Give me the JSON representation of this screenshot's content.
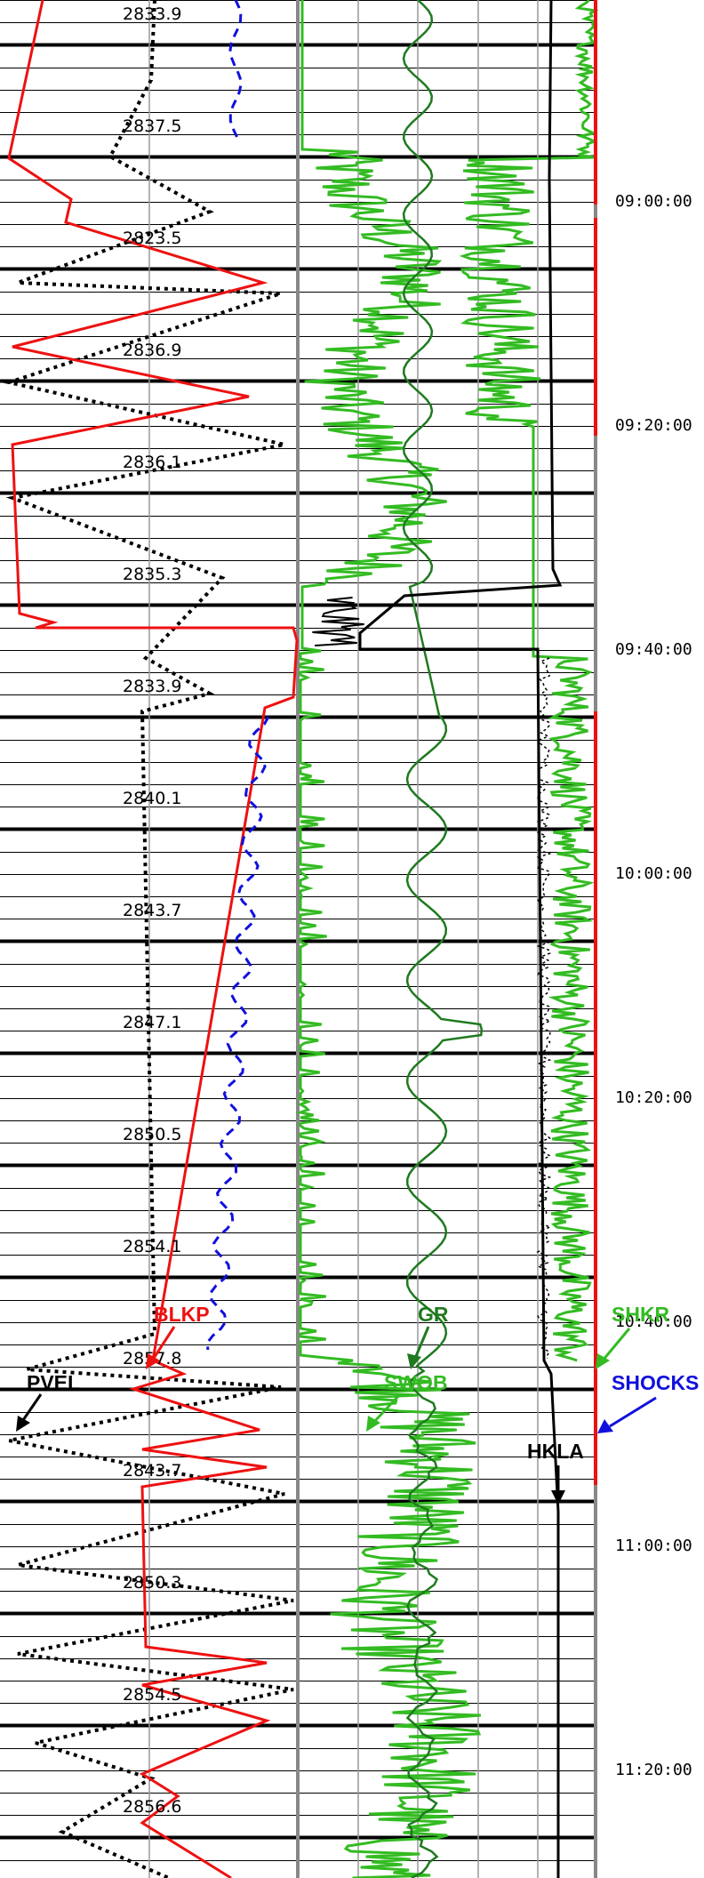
{
  "log": {
    "depth_labels": [
      "2833.9",
      "2837.5",
      "2823.5",
      "2836.9",
      "2836.1",
      "2835.3",
      "2833.9",
      "2840.1",
      "2843.7",
      "2847.1",
      "2850.5",
      "2854.1",
      "2857.8",
      "2843.7",
      "2850.3",
      "2854.5",
      "2856.6"
    ],
    "time_labels": [
      "09:00:00",
      "09:20:00",
      "09:40:00",
      "10:00:00",
      "10:20:00",
      "10:40:00",
      "11:00:00",
      "11:20:00"
    ],
    "curve_labels": [
      {
        "key": "blkp",
        "text": "BLKP",
        "color": "#ee1111"
      },
      {
        "key": "pvel",
        "text": "PVEL",
        "color": "#000000"
      },
      {
        "key": "gr",
        "text": "GR",
        "color": "#1f7a1f"
      },
      {
        "key": "swob",
        "text": "SWOB",
        "color": "#33bb22"
      },
      {
        "key": "shkr",
        "text": "SHKR",
        "color": "#33bb22"
      },
      {
        "key": "shocks",
        "text": "SHOCKS",
        "color": "#1010dd"
      },
      {
        "key": "hkla",
        "text": "HKLA",
        "color": "#000000"
      }
    ],
    "colors": {
      "blkp": "#ee1111",
      "pvel": "#000000",
      "gr": "#1f7a1f",
      "swob": "#33bb22",
      "shkr": "#33bb22",
      "shocks": "#1010dd",
      "hkla": "#000000",
      "blue_dashed": "#1010dd",
      "grid": "#000000",
      "track_divider": "#888888",
      "shocks_bar": "#ee1111"
    }
  }
}
